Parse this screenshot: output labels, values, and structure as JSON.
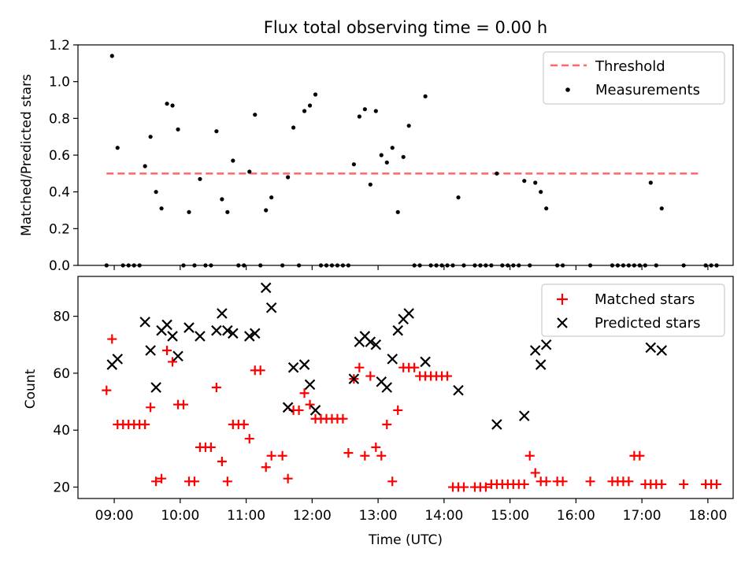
{
  "colors": {
    "threshold": "#ff6666",
    "measurements": "#000000",
    "matched": "#ff0000",
    "predicted": "#000000"
  },
  "chart_data": [
    {
      "type": "scatter",
      "title": "Flux total observing time = 0.00 h",
      "xlabel": "",
      "ylabel": "Matched/Predicted stars",
      "ylim": [
        0,
        1.2
      ],
      "yticks": [
        "0.0",
        "0.2",
        "0.4",
        "0.6",
        "0.8",
        "1.0",
        "1.2"
      ],
      "legend_position": "top-right",
      "threshold": {
        "name": "Threshold",
        "value": 0.5,
        "x_range": [
          "08:53",
          "17:53"
        ]
      },
      "series": [
        {
          "name": "Measurements",
          "points": [
            [
              "08:53",
              0
            ],
            [
              "08:58",
              1.14
            ],
            [
              "09:03",
              0.64
            ],
            [
              "09:08",
              0
            ],
            [
              "09:13",
              0
            ],
            [
              "09:18",
              0
            ],
            [
              "09:23",
              0
            ],
            [
              "09:28",
              0.54
            ],
            [
              "09:33",
              0.7
            ],
            [
              "09:38",
              0.4
            ],
            [
              "09:43",
              0.31
            ],
            [
              "09:48",
              0.88
            ],
            [
              "09:53",
              0.87
            ],
            [
              "09:58",
              0.74
            ],
            [
              "10:03",
              0
            ],
            [
              "10:08",
              0.29
            ],
            [
              "10:13",
              0
            ],
            [
              "10:18",
              0.47
            ],
            [
              "10:23",
              0
            ],
            [
              "10:28",
              0
            ],
            [
              "10:33",
              0.73
            ],
            [
              "10:38",
              0.36
            ],
            [
              "10:43",
              0.29
            ],
            [
              "10:48",
              0.57
            ],
            [
              "10:53",
              0
            ],
            [
              "10:58",
              0
            ],
            [
              "11:03",
              0.51
            ],
            [
              "11:08",
              0.82
            ],
            [
              "11:13",
              0
            ],
            [
              "11:18",
              0.3
            ],
            [
              "11:23",
              0.37
            ],
            [
              "11:33",
              0
            ],
            [
              "11:38",
              0.48
            ],
            [
              "11:43",
              0.75
            ],
            [
              "11:48",
              0
            ],
            [
              "11:53",
              0.84
            ],
            [
              "11:58",
              0.87
            ],
            [
              "12:03",
              0.93
            ],
            [
              "12:08",
              0
            ],
            [
              "12:13",
              0
            ],
            [
              "12:18",
              0
            ],
            [
              "12:23",
              0
            ],
            [
              "12:28",
              0
            ],
            [
              "12:33",
              0
            ],
            [
              "12:38",
              0.55
            ],
            [
              "12:43",
              0.81
            ],
            [
              "12:48",
              0.85
            ],
            [
              "12:53",
              0.44
            ],
            [
              "12:58",
              0.84
            ],
            [
              "13:03",
              0.6
            ],
            [
              "13:08",
              0.56
            ],
            [
              "13:13",
              0.64
            ],
            [
              "13:18",
              0.29
            ],
            [
              "13:23",
              0.59
            ],
            [
              "13:28",
              0.76
            ],
            [
              "13:33",
              0
            ],
            [
              "13:38",
              0
            ],
            [
              "13:43",
              0.92
            ],
            [
              "13:48",
              0
            ],
            [
              "13:53",
              0
            ],
            [
              "13:58",
              0
            ],
            [
              "14:03",
              0
            ],
            [
              "14:08",
              0
            ],
            [
              "14:13",
              0.37
            ],
            [
              "14:18",
              0
            ],
            [
              "14:28",
              0
            ],
            [
              "14:33",
              0
            ],
            [
              "14:38",
              0
            ],
            [
              "14:43",
              0
            ],
            [
              "14:48",
              0.5
            ],
            [
              "14:53",
              0
            ],
            [
              "14:58",
              0
            ],
            [
              "15:03",
              0
            ],
            [
              "15:08",
              0
            ],
            [
              "15:13",
              0.46
            ],
            [
              "15:18",
              0
            ],
            [
              "15:23",
              0.45
            ],
            [
              "15:28",
              0.4
            ],
            [
              "15:33",
              0.31
            ],
            [
              "15:43",
              0
            ],
            [
              "15:48",
              0
            ],
            [
              "16:13",
              0
            ],
            [
              "16:33",
              0
            ],
            [
              "16:38",
              0
            ],
            [
              "16:43",
              0
            ],
            [
              "16:48",
              0
            ],
            [
              "16:53",
              0
            ],
            [
              "16:58",
              0
            ],
            [
              "17:03",
              0
            ],
            [
              "17:08",
              0.45
            ],
            [
              "17:13",
              0
            ],
            [
              "17:18",
              0.31
            ],
            [
              "17:38",
              0
            ],
            [
              "17:58",
              0
            ],
            [
              "18:03",
              0
            ],
            [
              "18:08",
              0
            ]
          ]
        }
      ]
    },
    {
      "type": "scatter",
      "title": "",
      "xlabel": "Time (UTC)",
      "ylabel": "Count",
      "ylim": [
        16,
        94
      ],
      "yticks": [
        "20",
        "40",
        "60",
        "80"
      ],
      "xticks": [
        "09:00",
        "10:00",
        "11:00",
        "12:00",
        "13:00",
        "14:00",
        "15:00",
        "16:00",
        "17:00",
        "18:00"
      ],
      "legend_position": "top-right",
      "series": [
        {
          "name": "Matched stars",
          "points": [
            [
              "08:53",
              54
            ],
            [
              "08:58",
              72
            ],
            [
              "09:03",
              42
            ],
            [
              "09:08",
              42
            ],
            [
              "09:13",
              42
            ],
            [
              "09:18",
              42
            ],
            [
              "09:23",
              42
            ],
            [
              "09:28",
              42
            ],
            [
              "09:33",
              48
            ],
            [
              "09:38",
              22
            ],
            [
              "09:43",
              23
            ],
            [
              "09:48",
              68
            ],
            [
              "09:53",
              64
            ],
            [
              "09:58",
              49
            ],
            [
              "10:03",
              49
            ],
            [
              "10:08",
              22
            ],
            [
              "10:13",
              22
            ],
            [
              "10:18",
              34
            ],
            [
              "10:23",
              34
            ],
            [
              "10:28",
              34
            ],
            [
              "10:33",
              55
            ],
            [
              "10:38",
              29
            ],
            [
              "10:43",
              22
            ],
            [
              "10:48",
              42
            ],
            [
              "10:53",
              42
            ],
            [
              "10:58",
              42
            ],
            [
              "11:03",
              37
            ],
            [
              "11:08",
              61
            ],
            [
              "11:13",
              61
            ],
            [
              "11:18",
              27
            ],
            [
              "11:23",
              31
            ],
            [
              "11:33",
              31
            ],
            [
              "11:38",
              23
            ],
            [
              "11:43",
              47
            ],
            [
              "11:48",
              47
            ],
            [
              "11:53",
              53
            ],
            [
              "11:58",
              49
            ],
            [
              "12:03",
              44
            ],
            [
              "12:08",
              44
            ],
            [
              "12:13",
              44
            ],
            [
              "12:18",
              44
            ],
            [
              "12:23",
              44
            ],
            [
              "12:28",
              44
            ],
            [
              "12:33",
              32
            ],
            [
              "12:38",
              58
            ],
            [
              "12:43",
              62
            ],
            [
              "12:48",
              31
            ],
            [
              "12:53",
              59
            ],
            [
              "12:58",
              34
            ],
            [
              "13:03",
              31
            ],
            [
              "13:08",
              42
            ],
            [
              "13:13",
              22
            ],
            [
              "13:18",
              47
            ],
            [
              "13:23",
              62
            ],
            [
              "13:28",
              62
            ],
            [
              "13:33",
              62
            ],
            [
              "13:38",
              59
            ],
            [
              "13:43",
              59
            ],
            [
              "13:48",
              59
            ],
            [
              "13:53",
              59
            ],
            [
              "13:58",
              59
            ],
            [
              "14:03",
              59
            ],
            [
              "14:08",
              20
            ],
            [
              "14:13",
              20
            ],
            [
              "14:18",
              20
            ],
            [
              "14:28",
              20
            ],
            [
              "14:33",
              20
            ],
            [
              "14:38",
              20
            ],
            [
              "14:43",
              21
            ],
            [
              "14:48",
              21
            ],
            [
              "14:53",
              21
            ],
            [
              "14:58",
              21
            ],
            [
              "15:03",
              21
            ],
            [
              "15:08",
              21
            ],
            [
              "15:13",
              21
            ],
            [
              "15:18",
              31
            ],
            [
              "15:23",
              25
            ],
            [
              "15:28",
              22
            ],
            [
              "15:33",
              22
            ],
            [
              "15:43",
              22
            ],
            [
              "15:48",
              22
            ],
            [
              "16:13",
              22
            ],
            [
              "16:33",
              22
            ],
            [
              "16:38",
              22
            ],
            [
              "16:43",
              22
            ],
            [
              "16:48",
              22
            ],
            [
              "16:53",
              31
            ],
            [
              "16:58",
              31
            ],
            [
              "17:03",
              21
            ],
            [
              "17:08",
              21
            ],
            [
              "17:13",
              21
            ],
            [
              "17:18",
              21
            ],
            [
              "17:38",
              21
            ],
            [
              "17:58",
              21
            ],
            [
              "18:03",
              21
            ],
            [
              "18:08",
              21
            ]
          ]
        },
        {
          "name": "Predicted stars",
          "points": [
            [
              "08:58",
              63
            ],
            [
              "09:03",
              65
            ],
            [
              "09:28",
              78
            ],
            [
              "09:33",
              68
            ],
            [
              "09:38",
              55
            ],
            [
              "09:43",
              75
            ],
            [
              "09:48",
              77
            ],
            [
              "09:53",
              73
            ],
            [
              "09:58",
              66
            ],
            [
              "10:08",
              76
            ],
            [
              "10:18",
              73
            ],
            [
              "10:33",
              75
            ],
            [
              "10:38",
              81
            ],
            [
              "10:43",
              75
            ],
            [
              "10:48",
              74
            ],
            [
              "11:03",
              73
            ],
            [
              "11:08",
              74
            ],
            [
              "11:18",
              90
            ],
            [
              "11:23",
              83
            ],
            [
              "11:38",
              48
            ],
            [
              "11:43",
              62
            ],
            [
              "11:53",
              63
            ],
            [
              "11:58",
              56
            ],
            [
              "12:03",
              47
            ],
            [
              "12:38",
              58
            ],
            [
              "12:43",
              71
            ],
            [
              "12:48",
              73
            ],
            [
              "12:53",
              71
            ],
            [
              "12:58",
              70
            ],
            [
              "13:03",
              57
            ],
            [
              "13:08",
              55
            ],
            [
              "13:13",
              65
            ],
            [
              "13:18",
              75
            ],
            [
              "13:23",
              79
            ],
            [
              "13:28",
              81
            ],
            [
              "13:43",
              64
            ],
            [
              "14:13",
              54
            ],
            [
              "14:48",
              42
            ],
            [
              "15:13",
              45
            ],
            [
              "15:23",
              68
            ],
            [
              "15:28",
              63
            ],
            [
              "15:33",
              70
            ],
            [
              "17:08",
              69
            ],
            [
              "17:18",
              68
            ]
          ]
        }
      ]
    }
  ]
}
